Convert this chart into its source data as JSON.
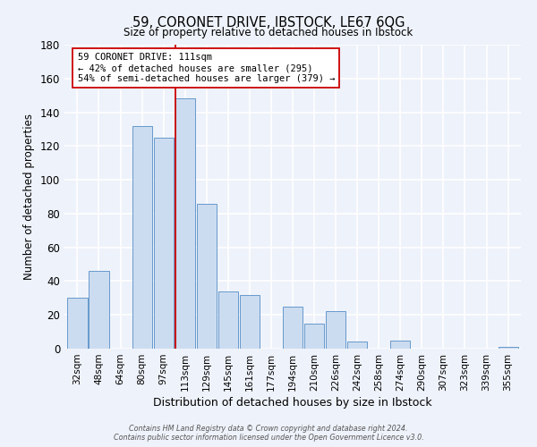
{
  "title": "59, CORONET DRIVE, IBSTOCK, LE67 6QG",
  "subtitle": "Size of property relative to detached houses in Ibstock",
  "xlabel": "Distribution of detached houses by size in Ibstock",
  "ylabel": "Number of detached properties",
  "bar_labels": [
    "32sqm",
    "48sqm",
    "64sqm",
    "80sqm",
    "97sqm",
    "113sqm",
    "129sqm",
    "145sqm",
    "161sqm",
    "177sqm",
    "194sqm",
    "210sqm",
    "226sqm",
    "242sqm",
    "258sqm",
    "274sqm",
    "290sqm",
    "307sqm",
    "323sqm",
    "339sqm",
    "355sqm"
  ],
  "bar_values": [
    30,
    46,
    0,
    132,
    125,
    148,
    86,
    34,
    32,
    0,
    25,
    15,
    22,
    4,
    0,
    5,
    0,
    0,
    0,
    0,
    1
  ],
  "bar_color": "#ccdcf0",
  "bar_edge_color": "#6699cc",
  "vline_x_index": 5,
  "vline_color": "#cc0000",
  "annotation_text": "59 CORONET DRIVE: 111sqm\n← 42% of detached houses are smaller (295)\n54% of semi-detached houses are larger (379) →",
  "annotation_box_color": "#ffffff",
  "annotation_box_edge": "#cc0000",
  "ylim": [
    0,
    180
  ],
  "yticks": [
    0,
    20,
    40,
    60,
    80,
    100,
    120,
    140,
    160,
    180
  ],
  "footer1": "Contains HM Land Registry data © Crown copyright and database right 2024.",
  "footer2": "Contains public sector information licensed under the Open Government Licence v3.0.",
  "bg_color": "#eef2fa"
}
